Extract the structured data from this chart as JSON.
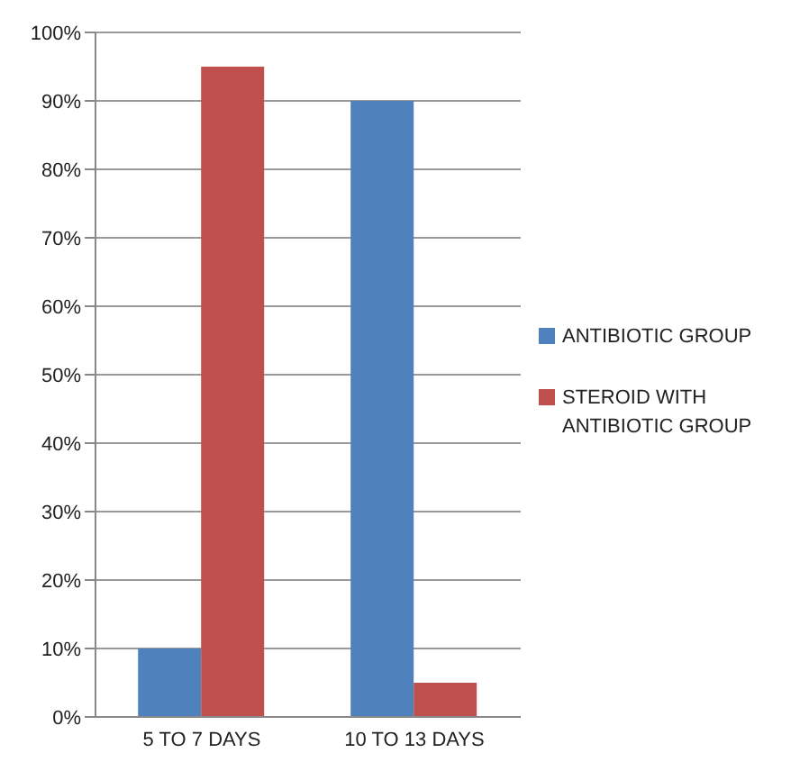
{
  "chart_data": {
    "type": "bar",
    "categories": [
      "5 TO 7 DAYS",
      "10 TO 13 DAYS"
    ],
    "series": [
      {
        "name": "ANTIBIOTIC GROUP",
        "color": "#4f81bd",
        "values": [
          10,
          90
        ]
      },
      {
        "name": "STEROID WITH ANTIBIOTIC GROUP",
        "color": "#c0504d",
        "values": [
          95,
          5
        ]
      }
    ],
    "ylim": [
      0,
      100
    ],
    "yticks": [
      {
        "value": 0,
        "label": "0%"
      },
      {
        "value": 10,
        "label": "10%"
      },
      {
        "value": 20,
        "label": "20%"
      },
      {
        "value": 30,
        "label": "30%"
      },
      {
        "value": 40,
        "label": "40%"
      },
      {
        "value": 50,
        "label": "50%"
      },
      {
        "value": 60,
        "label": "60%"
      },
      {
        "value": 70,
        "label": "70%"
      },
      {
        "value": 80,
        "label": "80%"
      },
      {
        "value": 90,
        "label": "90%"
      },
      {
        "value": 100,
        "label": "100%"
      }
    ],
    "grid": "y",
    "legend": "right"
  }
}
